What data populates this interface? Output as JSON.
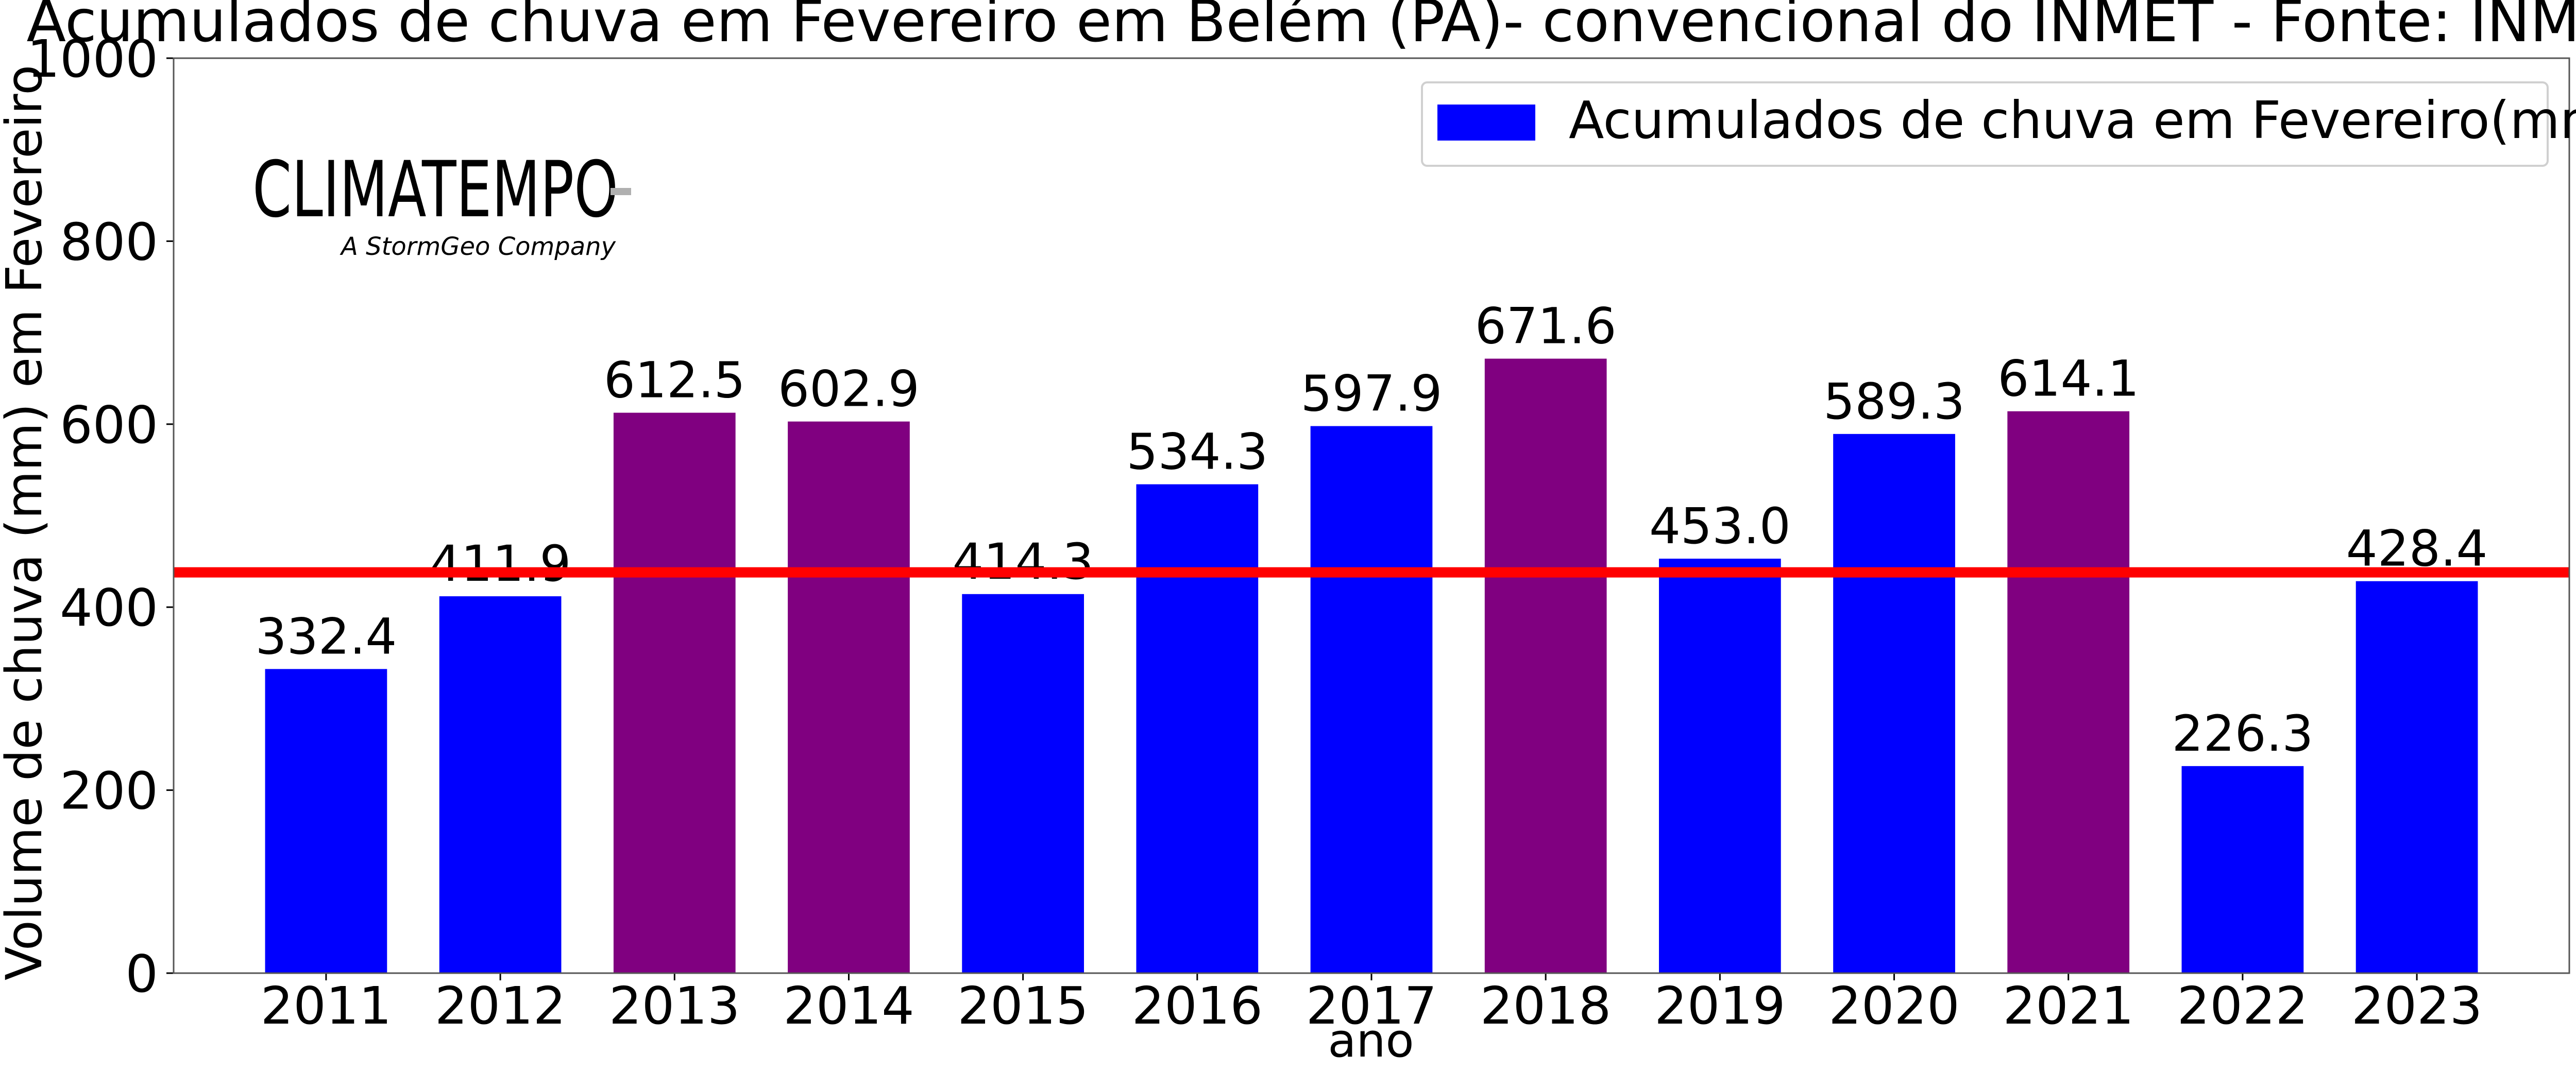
{
  "logo": {
    "name": "CLIMATEMPO",
    "tagline": "A StormGeo Company",
    "color": "#3b4a78",
    "accent": "#b0b0b0"
  },
  "chart_data": {
    "type": "bar",
    "title": "Acumulados de chuva em Fevereiro em Belém (PA)- convencional do INMET - Fonte: INMET",
    "xlabel": "ano",
    "ylabel": "Volume de chuva (mm) em Fevereiro",
    "ylim": [
      0,
      1000
    ],
    "yticks": [
      0,
      200,
      400,
      600,
      800,
      1000
    ],
    "categories": [
      "2011",
      "2012",
      "2013",
      "2014",
      "2015",
      "2016",
      "2017",
      "2018",
      "2019",
      "2020",
      "2021",
      "2022",
      "2023"
    ],
    "series": [
      {
        "name": "Acumulados de chuva em Fevereiro(mm)",
        "values": [
          332.4,
          411.9,
          612.5,
          602.9,
          414.3,
          534.3,
          597.9,
          671.6,
          453.0,
          589.3,
          614.1,
          226.3,
          428.4
        ],
        "value_labels": [
          "332.4",
          "411.9",
          "612.5",
          "602.9",
          "414.3",
          "534.3",
          "597.9",
          "671.6",
          "453.0",
          "589.3",
          "614.1",
          "226.3",
          "428.4"
        ],
        "colors": [
          "#0000ff",
          "#0000ff",
          "#800080",
          "#800080",
          "#0000ff",
          "#0000ff",
          "#0000ff",
          "#800080",
          "#0000ff",
          "#0000ff",
          "#800080",
          "#0000ff",
          "#0000ff"
        ]
      }
    ],
    "reference_line": {
      "value": 438,
      "color": "#ff0000"
    },
    "legend": {
      "position": "top-right",
      "color": "#0000ff"
    },
    "grid": false
  }
}
